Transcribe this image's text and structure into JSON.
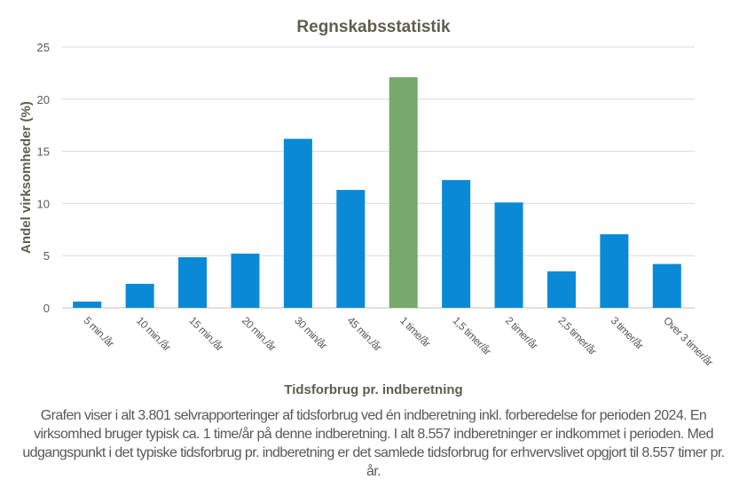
{
  "chart_data": {
    "type": "bar",
    "title": "Regnskabsstatistik",
    "xlabel": "Tidsforbrug pr. indberetning",
    "ylabel": "Andel virksomheder  (%)",
    "ylim": [
      0,
      25
    ],
    "yticks": [
      0,
      5,
      10,
      15,
      20,
      25
    ],
    "grid": true,
    "categories": [
      "5 min./år",
      "10 min./år",
      "15 min./år",
      "20 min./år",
      "30 min/år",
      "45 min./år",
      "1 time/år",
      "1,5 timer/år",
      "2 timer/år",
      "2,5 timer/år",
      "3 timer/år",
      "Over 3 timer/år"
    ],
    "values": [
      0.6,
      2.3,
      4.85,
      5.2,
      16.2,
      11.3,
      22.1,
      12.25,
      10.1,
      3.5,
      7.05,
      4.2
    ],
    "highlight_index": 6,
    "colors": {
      "bar": "#0A8AD6",
      "highlight": "#77A86E",
      "grid": "#D9D9D9",
      "text": "#595959",
      "title": "#5E5E50"
    }
  },
  "caption": "Grafen viser i alt 3.801 selvrapporteringer af tidsforbrug ved én indberetning inkl. forberedelse for perioden 2024. En virksomhed bruger typisk ca. 1 time/år på denne indberetning. I alt 8.557 indberetninger er indkommet i perioden. Med udgangspunkt i det typiske tidsforbrug pr. indberetning er det samlede tidsforbrug for erhvervslivet opgjort til 8.557 timer pr. år."
}
